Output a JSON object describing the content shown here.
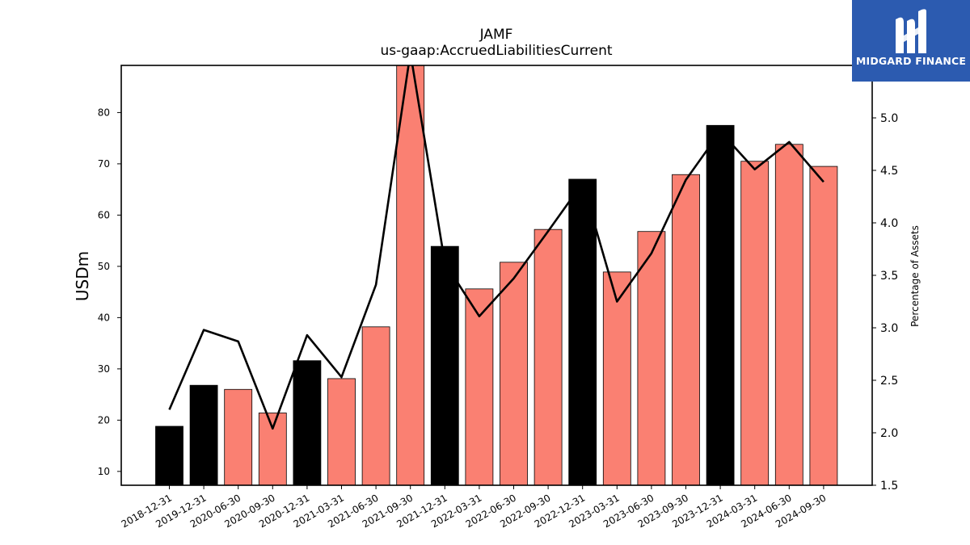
{
  "logo": {
    "text": "MIDGARD FINANCE"
  },
  "colors": {
    "annual_bar": "#000000",
    "quarter_bar": "#fa8072",
    "line": "#000000",
    "logo_bg": "#2c5bb0"
  },
  "chart_data": {
    "type": "bar",
    "title": "JAMF",
    "subtitle": "us-gaap:AccruedLiabilitiesCurrent",
    "ylabel": "USDm",
    "ylabel_right": "Percentage of Assets",
    "ylim": [
      7.3,
      89.2
    ],
    "ylim_right": [
      1.5,
      5.5
    ],
    "yticks": [
      10,
      20,
      30,
      40,
      50,
      60,
      70,
      80
    ],
    "yticks_right": [
      "1.5",
      "2.0",
      "2.5",
      "3.0",
      "3.5",
      "4.0",
      "4.5",
      "5.0"
    ],
    "categories": [
      "2018-12-31",
      "2019-12-31",
      "2020-06-30",
      "2020-09-30",
      "2020-12-31",
      "2021-03-31",
      "2021-06-30",
      "2021-09-30",
      "2021-12-31",
      "2022-03-31",
      "2022-06-30",
      "2022-09-30",
      "2022-12-31",
      "2023-03-31",
      "2023-06-30",
      "2023-09-30",
      "2023-12-31",
      "2024-03-31",
      "2024-06-30",
      "2024-09-30"
    ],
    "series": [
      {
        "values": [
          18.8,
          26.8,
          26.0,
          21.4,
          31.6,
          28.1,
          38.2,
          91.0,
          53.9,
          45.6,
          50.8,
          57.2,
          67.0,
          48.9,
          56.8,
          67.9,
          77.5,
          70.5,
          73.8,
          69.5
        ],
        "annual": [
          true,
          true,
          false,
          false,
          true,
          false,
          false,
          false,
          true,
          false,
          false,
          false,
          true,
          false,
          false,
          false,
          true,
          false,
          false,
          false
        ]
      },
      {
        "axis": "right",
        "values": [
          2.22,
          2.98,
          2.87,
          2.04,
          2.93,
          2.53,
          3.41,
          5.62,
          3.62,
          3.11,
          3.47,
          3.92,
          4.38,
          3.25,
          3.71,
          4.41,
          4.87,
          4.51,
          4.77,
          4.39
        ]
      }
    ]
  }
}
